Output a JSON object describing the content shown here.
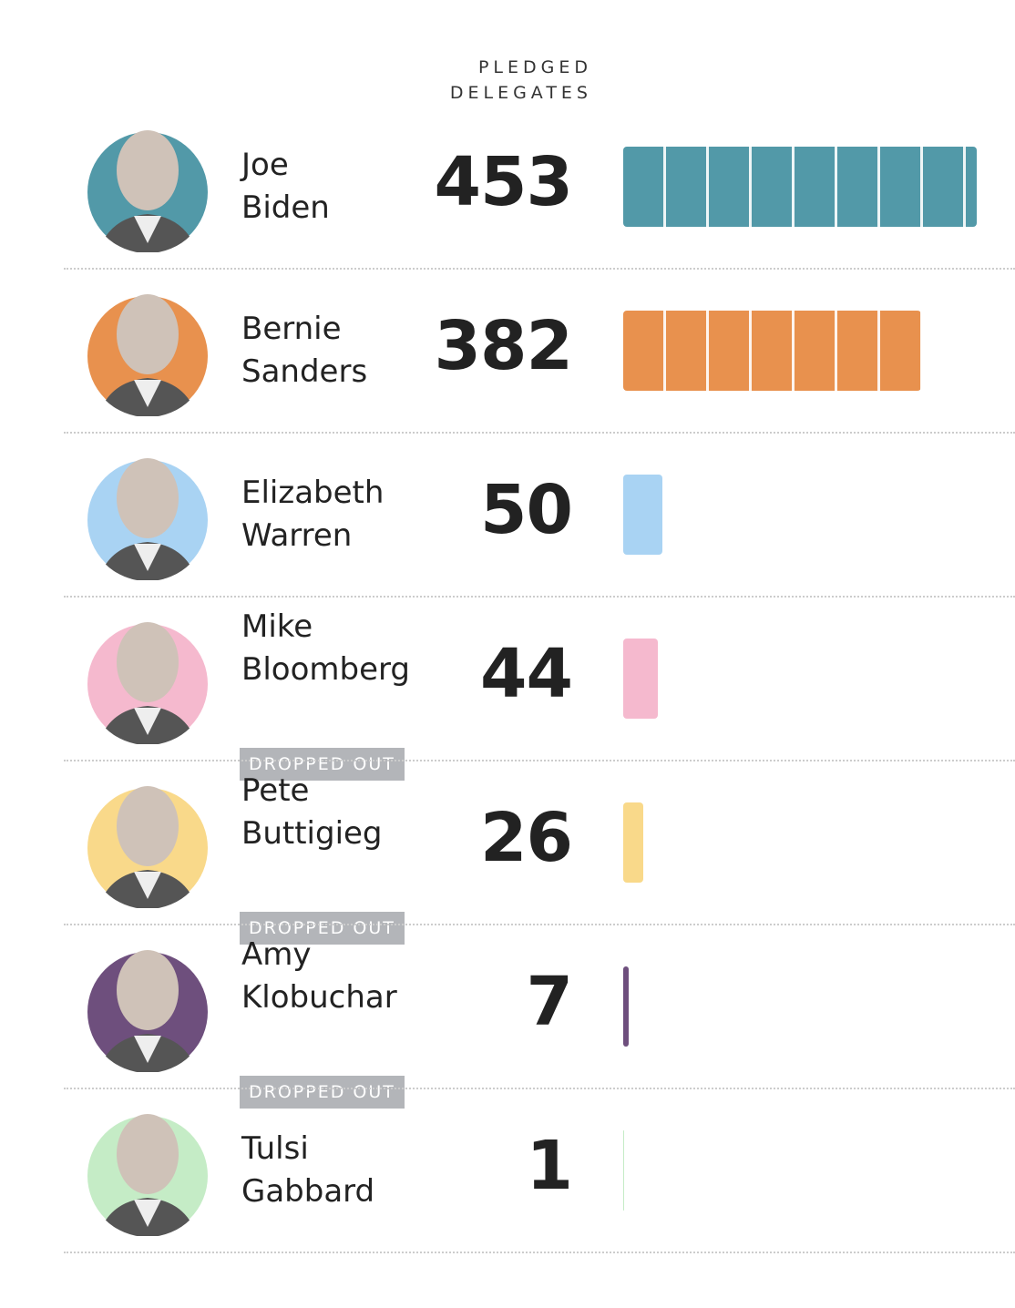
{
  "chart_data": {
    "type": "bar",
    "value_label": "PLEDGED DELEGATES",
    "categories": [
      "Joe Biden",
      "Bernie Sanders",
      "Elizabeth Warren",
      "Mike Bloomberg",
      "Pete Buttigieg",
      "Amy Klobuchar",
      "Tulsi Gabbard"
    ],
    "values": [
      453,
      382,
      50,
      44,
      26,
      7,
      1
    ],
    "colors": [
      "#5299a8",
      "#e8914e",
      "#a9d3f3",
      "#f5b9ce",
      "#f9d98a",
      "#6e4f7d",
      "#c5ecc6"
    ],
    "status": [
      null,
      null,
      null,
      "DROPPED OUT",
      "DROPPED OUT",
      "DROPPED OUT",
      null
    ]
  }
}
